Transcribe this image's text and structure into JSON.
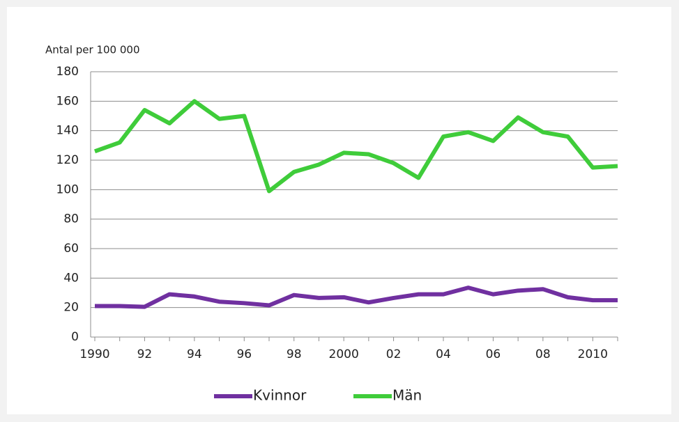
{
  "chart_data": {
    "type": "line",
    "y_label": "Antal per 100 000",
    "categories": [
      "1990",
      null,
      "92",
      null,
      "94",
      null,
      "96",
      null,
      "98",
      null,
      "2000",
      null,
      "02",
      null,
      "04",
      null,
      "06",
      null,
      "08",
      null,
      "2010",
      null
    ],
    "series": [
      {
        "name": "Kvinnor",
        "color": "#7030a0",
        "values": [
          21,
          21,
          20.5,
          29,
          27.5,
          24,
          23,
          21.5,
          28.5,
          26.5,
          27,
          23.5,
          26.5,
          29,
          29,
          33.5,
          29,
          31.5,
          32.5,
          27,
          25,
          25
        ]
      },
      {
        "name": "Män",
        "color": "#3fcc3a",
        "values": [
          126,
          132,
          154,
          145,
          160,
          148,
          150,
          99,
          112,
          117,
          125,
          124,
          118,
          108,
          136,
          139,
          133,
          149,
          139,
          136,
          115,
          116
        ]
      }
    ],
    "ylim": [
      0,
      180
    ],
    "yticks": [
      0,
      20,
      40,
      60,
      80,
      100,
      120,
      140,
      160,
      180
    ],
    "grid": true,
    "legend": "bottom"
  }
}
